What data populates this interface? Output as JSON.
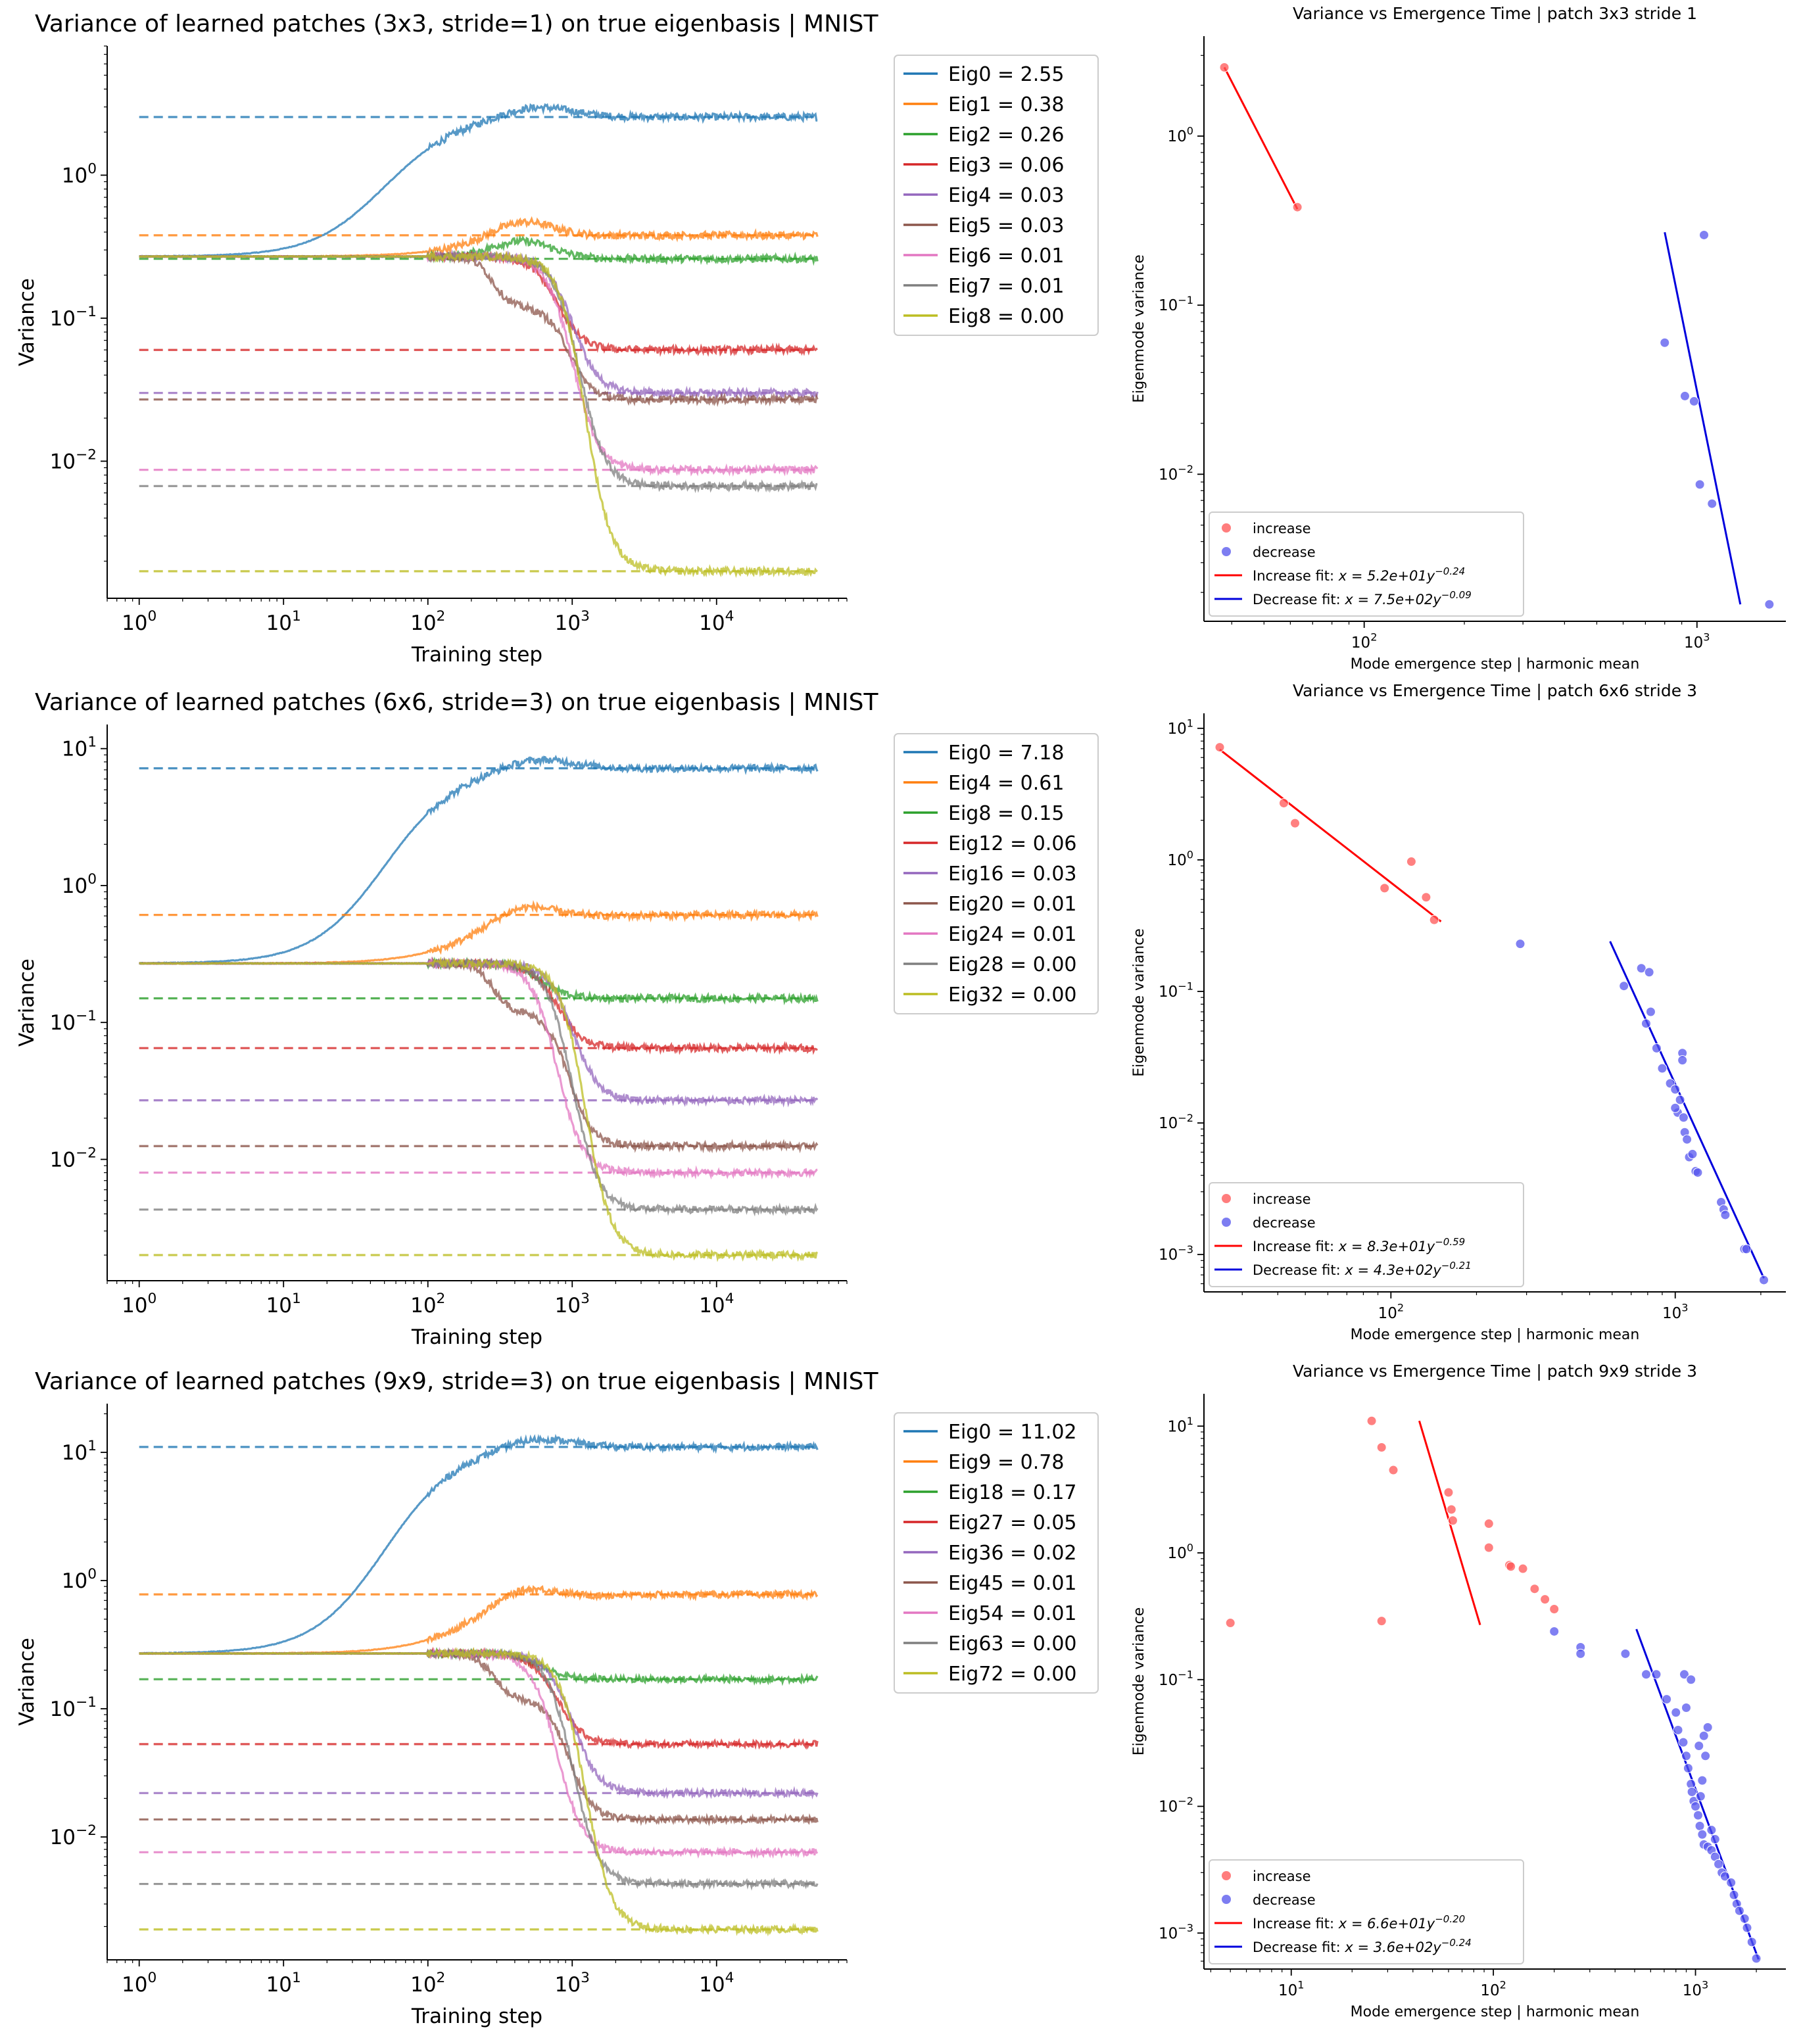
{
  "chart_data": [
    {
      "type": "line",
      "title": "Variance of learned patches (3x3, stride=1) on true eigenbasis | MNIST",
      "xlabel": "Training step",
      "ylabel": "Variance",
      "xscale": "log",
      "yscale": "log",
      "xlim": [
        0.6,
        80000
      ],
      "ylim": [
        0.0011,
        8
      ],
      "xticks": [
        {
          "v": 1,
          "b": "10",
          "e": "0"
        },
        {
          "v": 10,
          "b": "10",
          "e": "1"
        },
        {
          "v": 100,
          "b": "10",
          "e": "2"
        },
        {
          "v": 1000,
          "b": "10",
          "e": "3"
        },
        {
          "v": 10000,
          "b": "10",
          "e": "4"
        }
      ],
      "yticks": [
        {
          "v": 0.01,
          "b": "10",
          "e": "−2"
        },
        {
          "v": 0.1,
          "b": "10",
          "e": "−1"
        },
        {
          "v": 1,
          "b": "10",
          "e": "0"
        }
      ],
      "legend_position": "upper-right-outside",
      "series": [
        {
          "name": "Eig0 = 2.55",
          "final": 2.55,
          "color": "#1f77b4",
          "p": 0.55,
          "decay": 0
        },
        {
          "name": "Eig1 = 0.38",
          "final": 0.38,
          "color": "#ff7f0e",
          "p": 0.15,
          "decay": 0
        },
        {
          "name": "Eig2 = 0.26",
          "final": 0.26,
          "color": "#2ca02c",
          "p": 0.12,
          "decay": 0
        },
        {
          "name": "Eig3 = 0.06",
          "final": 0.06,
          "color": "#d62728",
          "td": 700,
          "decay": 1
        },
        {
          "name": "Eig4 = 0.03",
          "final": 0.03,
          "color": "#9467bd",
          "td": 900,
          "decay": 1
        },
        {
          "name": "Eig5 = 0.03",
          "final": 0.027,
          "color": "#8c564b",
          "td": 350,
          "decay": 1
        },
        {
          "name": "Eig6 = 0.01",
          "final": 0.0087,
          "color": "#e377c2",
          "td": 900,
          "decay": 1
        },
        {
          "name": "Eig7 = 0.01",
          "final": 0.0067,
          "color": "#7f7f7f",
          "td": 1000,
          "decay": 1
        },
        {
          "name": "Eig8 = 0.00",
          "final": 0.0017,
          "color": "#bcbd22",
          "td": 1100,
          "decay": 1
        }
      ]
    },
    {
      "type": "scatter",
      "title": "Variance vs Emergence Time | patch 3x3 stride 1",
      "xlabel": "Mode emergence step | harmonic mean",
      "ylabel": "Eigenmode variance",
      "xscale": "log",
      "yscale": "log",
      "xlim": [
        33,
        1850
      ],
      "ylim": [
        0.00135,
        3.9
      ],
      "xticks": [
        {
          "v": 100,
          "b": "10",
          "e": "2"
        },
        {
          "v": 1000,
          "b": "10",
          "e": "3"
        }
      ],
      "yticks": [
        {
          "v": 0.01,
          "b": "10",
          "e": "−2"
        },
        {
          "v": 0.1,
          "b": "10",
          "e": "−1"
        },
        {
          "v": 1,
          "b": "10",
          "e": "0"
        }
      ],
      "increase": [
        [
          38,
          2.55
        ],
        [
          63,
          0.38
        ]
      ],
      "decrease": [
        [
          1050,
          0.26
        ],
        [
          800,
          0.06
        ],
        [
          920,
          0.029
        ],
        [
          980,
          0.027
        ],
        [
          1020,
          0.0087
        ],
        [
          1110,
          0.0067
        ],
        [
          1650,
          0.0017
        ]
      ],
      "increase_fit": [
        [
          38,
          2.55
        ],
        [
          63,
          0.37
        ]
      ],
      "decrease_fit": [
        [
          800,
          0.27
        ],
        [
          1350,
          0.0017
        ]
      ],
      "legend": [
        {
          "label": "increase",
          "kind": "dot",
          "color": "#ff6666"
        },
        {
          "label": "decrease",
          "kind": "dot",
          "color": "#6666ee"
        },
        {
          "label": "Increase fit: ",
          "math": "x = 5.2e+01y",
          "exp": "−0.24",
          "kind": "line",
          "color": "#ff0000"
        },
        {
          "label": "Decrease fit: ",
          "math": "x = 7.5e+02y",
          "exp": "−0.09",
          "kind": "line",
          "color": "#0000dd"
        }
      ]
    },
    {
      "type": "line",
      "title": "Variance of learned patches (6x6, stride=3) on true eigenbasis | MNIST",
      "xlabel": "Training step",
      "ylabel": "Variance",
      "xscale": "log",
      "yscale": "log",
      "xlim": [
        0.6,
        80000
      ],
      "ylim": [
        0.0013,
        15
      ],
      "xticks": [
        {
          "v": 1,
          "b": "10",
          "e": "0"
        },
        {
          "v": 10,
          "b": "10",
          "e": "1"
        },
        {
          "v": 100,
          "b": "10",
          "e": "2"
        },
        {
          "v": 1000,
          "b": "10",
          "e": "3"
        },
        {
          "v": 10000,
          "b": "10",
          "e": "4"
        }
      ],
      "yticks": [
        {
          "v": 0.01,
          "b": "10",
          "e": "−2"
        },
        {
          "v": 0.1,
          "b": "10",
          "e": "−1"
        },
        {
          "v": 1,
          "b": "10",
          "e": "0"
        },
        {
          "v": 10,
          "b": "10",
          "e": "1"
        }
      ],
      "legend_position": "upper-right-outside",
      "series": [
        {
          "name": "Eig0 = 7.18",
          "final": 7.18,
          "color": "#1f77b4",
          "p": 0.6,
          "decay": 0
        },
        {
          "name": "Eig4 = 0.61",
          "final": 0.61,
          "color": "#ff7f0e",
          "p": 0.12,
          "decay": 0
        },
        {
          "name": "Eig8 = 0.15",
          "final": 0.15,
          "color": "#2ca02c",
          "td": 550,
          "decay": 1
        },
        {
          "name": "Eig12 = 0.06",
          "final": 0.065,
          "color": "#d62728",
          "td": 700,
          "decay": 1
        },
        {
          "name": "Eig16 = 0.03",
          "final": 0.027,
          "color": "#9467bd",
          "td": 900,
          "decay": 1
        },
        {
          "name": "Eig20 = 0.01",
          "final": 0.0125,
          "color": "#8c564b",
          "td": 300,
          "decay": 1
        },
        {
          "name": "Eig24 = 0.01",
          "final": 0.008,
          "color": "#e377c2",
          "td": 700,
          "decay": 1
        },
        {
          "name": "Eig28 = 0.00",
          "final": 0.0043,
          "color": "#7f7f7f",
          "td": 900,
          "decay": 1
        },
        {
          "name": "Eig32 = 0.00",
          "final": 0.002,
          "color": "#bcbd22",
          "td": 1100,
          "decay": 1
        }
      ]
    },
    {
      "type": "scatter",
      "title": "Variance vs Emergence Time | patch 6x6 stride 3",
      "xlabel": "Mode emergence step | harmonic mean",
      "ylabel": "Eigenmode variance",
      "xscale": "log",
      "yscale": "log",
      "xlim": [
        22,
        2450
      ],
      "ylim": [
        0.00052,
        13
      ],
      "xticks": [
        {
          "v": 100,
          "b": "10",
          "e": "2"
        },
        {
          "v": 1000,
          "b": "10",
          "e": "3"
        }
      ],
      "yticks": [
        {
          "v": 0.001,
          "b": "10",
          "e": "−3"
        },
        {
          "v": 0.01,
          "b": "10",
          "e": "−2"
        },
        {
          "v": 0.1,
          "b": "10",
          "e": "−1"
        },
        {
          "v": 1,
          "b": "10",
          "e": "0"
        },
        {
          "v": 10,
          "b": "10",
          "e": "1"
        }
      ],
      "increase": [
        [
          25,
          7.18
        ],
        [
          42,
          2.7
        ],
        [
          46,
          1.9
        ],
        [
          95,
          0.61
        ],
        [
          118,
          0.97
        ],
        [
          133,
          0.52
        ],
        [
          142,
          0.35
        ]
      ],
      "decrease": [
        [
          285,
          0.23
        ],
        [
          660,
          0.11
        ],
        [
          760,
          0.15
        ],
        [
          810,
          0.14
        ],
        [
          790,
          0.057
        ],
        [
          820,
          0.07
        ],
        [
          860,
          0.037
        ],
        [
          900,
          0.026
        ],
        [
          960,
          0.02
        ],
        [
          1020,
          0.012
        ],
        [
          1040,
          0.015
        ],
        [
          1060,
          0.034
        ],
        [
          1060,
          0.03
        ],
        [
          1080,
          0.0085
        ],
        [
          1100,
          0.0075
        ],
        [
          1120,
          0.0055
        ],
        [
          1150,
          0.0058
        ],
        [
          1180,
          0.0043
        ],
        [
          1200,
          0.0042
        ],
        [
          1450,
          0.0025
        ],
        [
          1480,
          0.0022
        ],
        [
          1500,
          0.002
        ],
        [
          1750,
          0.0011
        ],
        [
          1780,
          0.0011
        ],
        [
          2050,
          0.00064
        ],
        [
          1000,
          0.018
        ],
        [
          1070,
          0.011
        ],
        [
          1000,
          0.013
        ]
      ],
      "increase_fit": [
        [
          25,
          6.9
        ],
        [
          150,
          0.34
        ]
      ],
      "decrease_fit": [
        [
          590,
          0.24
        ],
        [
          2050,
          0.00066
        ]
      ],
      "legend": [
        {
          "label": "increase",
          "kind": "dot",
          "color": "#ff6666"
        },
        {
          "label": "decrease",
          "kind": "dot",
          "color": "#6666ee"
        },
        {
          "label": "Increase fit: ",
          "math": "x = 8.3e+01y",
          "exp": "−0.59",
          "kind": "line",
          "color": "#ff0000"
        },
        {
          "label": "Decrease fit: ",
          "math": "x = 4.3e+02y",
          "exp": "−0.21",
          "kind": "line",
          "color": "#0000dd"
        }
      ]
    },
    {
      "type": "line",
      "title": "Variance of learned patches (9x9, stride=3) on true eigenbasis | MNIST",
      "xlabel": "Training step",
      "ylabel": "Variance",
      "xscale": "log",
      "yscale": "log",
      "xlim": [
        0.6,
        80000
      ],
      "ylim": [
        0.0011,
        24
      ],
      "xticks": [
        {
          "v": 1,
          "b": "10",
          "e": "0"
        },
        {
          "v": 10,
          "b": "10",
          "e": "1"
        },
        {
          "v": 100,
          "b": "10",
          "e": "2"
        },
        {
          "v": 1000,
          "b": "10",
          "e": "3"
        },
        {
          "v": 10000,
          "b": "10",
          "e": "4"
        }
      ],
      "yticks": [
        {
          "v": 0.01,
          "b": "10",
          "e": "−2"
        },
        {
          "v": 0.1,
          "b": "10",
          "e": "−1"
        },
        {
          "v": 1,
          "b": "10",
          "e": "0"
        },
        {
          "v": 10,
          "b": "10",
          "e": "1"
        }
      ],
      "legend_position": "upper-right-outside",
      "series": [
        {
          "name": "Eig0 = 11.02",
          "final": 11.02,
          "color": "#1f77b4",
          "p": 0.62,
          "decay": 0
        },
        {
          "name": "Eig9 = 0.78",
          "final": 0.78,
          "color": "#ff7f0e",
          "p": 0.12,
          "decay": 0
        },
        {
          "name": "Eig18 = 0.17",
          "final": 0.17,
          "color": "#2ca02c",
          "td": 550,
          "decay": 1
        },
        {
          "name": "Eig27 = 0.05",
          "final": 0.053,
          "color": "#d62728",
          "td": 700,
          "decay": 1
        },
        {
          "name": "Eig36 = 0.02",
          "final": 0.022,
          "color": "#9467bd",
          "td": 900,
          "decay": 1
        },
        {
          "name": "Eig45 = 0.01",
          "final": 0.0137,
          "color": "#8c564b",
          "td": 300,
          "decay": 1
        },
        {
          "name": "Eig54 = 0.01",
          "final": 0.0076,
          "color": "#e377c2",
          "td": 700,
          "decay": 1
        },
        {
          "name": "Eig63 = 0.00",
          "final": 0.0043,
          "color": "#7f7f7f",
          "td": 900,
          "decay": 1
        },
        {
          "name": "Eig72 = 0.00",
          "final": 0.0019,
          "color": "#bcbd22",
          "td": 1100,
          "decay": 1
        }
      ]
    },
    {
      "type": "scatter",
      "title": "Variance vs Emergence Time | patch 9x9 stride 3",
      "xlabel": "Mode emergence step | harmonic mean",
      "ylabel": "Eigenmode variance",
      "xscale": "log",
      "yscale": "log",
      "xlim": [
        3.7,
        2800
      ],
      "ylim": [
        0.00052,
        18
      ],
      "xticks": [
        {
          "v": 10,
          "b": "10",
          "e": "1"
        },
        {
          "v": 100,
          "b": "10",
          "e": "2"
        },
        {
          "v": 1000,
          "b": "10",
          "e": "3"
        }
      ],
      "yticks": [
        {
          "v": 0.001,
          "b": "10",
          "e": "−3"
        },
        {
          "v": 0.01,
          "b": "10",
          "e": "−2"
        },
        {
          "v": 0.1,
          "b": "10",
          "e": "−1"
        },
        {
          "v": 1,
          "b": "10",
          "e": "0"
        },
        {
          "v": 10,
          "b": "10",
          "e": "1"
        }
      ],
      "increase": [
        [
          5,
          0.28
        ],
        [
          25,
          11.0
        ],
        [
          28,
          6.8
        ],
        [
          32,
          4.5
        ],
        [
          28,
          0.29
        ],
        [
          60,
          3.0
        ],
        [
          62,
          2.2
        ],
        [
          63,
          1.8
        ],
        [
          95,
          1.7
        ],
        [
          95,
          1.1
        ],
        [
          120,
          0.8
        ],
        [
          122,
          0.78
        ],
        [
          140,
          0.75
        ],
        [
          160,
          0.52
        ],
        [
          180,
          0.43
        ],
        [
          200,
          0.36
        ]
      ],
      "decrease": [
        [
          200,
          0.24
        ],
        [
          270,
          0.18
        ],
        [
          270,
          0.16
        ],
        [
          450,
          0.16
        ],
        [
          570,
          0.11
        ],
        [
          640,
          0.11
        ],
        [
          720,
          0.07
        ],
        [
          880,
          0.11
        ],
        [
          900,
          0.06
        ],
        [
          950,
          0.1
        ],
        [
          800,
          0.055
        ],
        [
          820,
          0.04
        ],
        [
          870,
          0.032
        ],
        [
          900,
          0.025
        ],
        [
          920,
          0.02
        ],
        [
          950,
          0.015
        ],
        [
          960,
          0.013
        ],
        [
          980,
          0.011
        ],
        [
          1000,
          0.01
        ],
        [
          1030,
          0.0085
        ],
        [
          1050,
          0.007
        ],
        [
          1080,
          0.006
        ],
        [
          1100,
          0.005
        ],
        [
          1150,
          0.0048
        ],
        [
          1200,
          0.0045
        ],
        [
          1250,
          0.004
        ],
        [
          1300,
          0.0035
        ],
        [
          1350,
          0.003
        ],
        [
          1400,
          0.0028
        ],
        [
          1500,
          0.0025
        ],
        [
          1550,
          0.002
        ],
        [
          1600,
          0.0017
        ],
        [
          1650,
          0.0015
        ],
        [
          1750,
          0.0013
        ],
        [
          1800,
          0.0011
        ],
        [
          1900,
          0.00085
        ],
        [
          2000,
          0.00063
        ],
        [
          1040,
          0.03
        ],
        [
          1100,
          0.036
        ],
        [
          1150,
          0.042
        ],
        [
          1080,
          0.016
        ],
        [
          1120,
          0.025
        ],
        [
          1060,
          0.012
        ],
        [
          1200,
          0.0065
        ],
        [
          1250,
          0.0055
        ]
      ],
      "increase_fit": [
        [
          43,
          11.0
        ],
        [
          86,
          0.27
        ]
      ],
      "decrease_fit": [
        [
          510,
          0.25
        ],
        [
          2050,
          0.00062
        ]
      ],
      "legend": [
        {
          "label": "increase",
          "kind": "dot",
          "color": "#ff6666"
        },
        {
          "label": "decrease",
          "kind": "dot",
          "color": "#6666ee"
        },
        {
          "label": "Increase fit: ",
          "math": "x = 6.6e+01y",
          "exp": "−0.20",
          "kind": "line",
          "color": "#ff0000"
        },
        {
          "label": "Decrease fit: ",
          "math": "x = 3.6e+02y",
          "exp": "−0.24",
          "kind": "line",
          "color": "#0000dd"
        }
      ]
    }
  ]
}
